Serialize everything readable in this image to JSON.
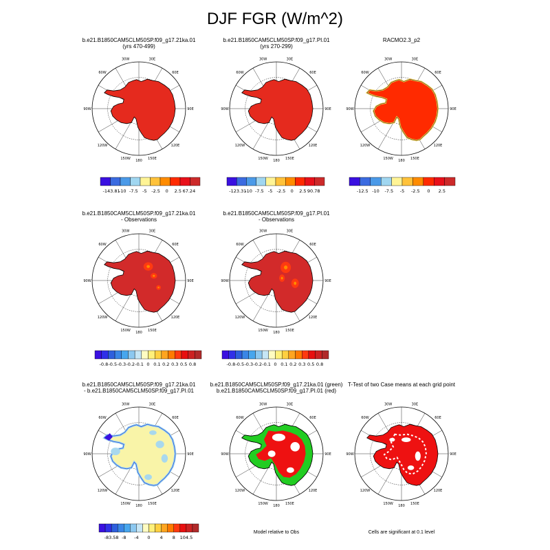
{
  "title": "DJF FGR (W/m^2)",
  "grid_labels": {
    "lon_labels": [
      "30W",
      "30E",
      "60W",
      "60E",
      "90W",
      "90E",
      "120W",
      "120E",
      "150W",
      "150E",
      "180"
    ]
  },
  "colors": {
    "palette_11": [
      "#3a10e0",
      "#3b6be0",
      "#4b9ae8",
      "#a0d6f0",
      "#fff496",
      "#ffc23a",
      "#ff8c00",
      "#ff2a00",
      "#e8101a",
      "#cc2a2a"
    ],
    "palette_16": [
      "#3a10e0",
      "#3030e8",
      "#2e5fdd",
      "#3a86e6",
      "#47a6ee",
      "#8cc8f0",
      "#c6e6f6",
      "#fffcc2",
      "#fff07a",
      "#ffd040",
      "#ffa520",
      "#ff7a00",
      "#ff3a10",
      "#e81010",
      "#cc2222",
      "#b02a2a"
    ],
    "model_fill": "#e52a1e",
    "racmo_fill": "#ff2a00",
    "diff_fill": "#d22a2a",
    "bias_fill": "#f9f4a8",
    "bias_light_blue": "#a8d8ee",
    "green": "#22cc22",
    "red": "#ee1111"
  },
  "chart_data": [
    {
      "id": "p1",
      "type": "heatmap",
      "title_lines": [
        "b.e21.B1850CAM5CLM50SP.f09_g17.21ka.01",
        "(yrs 470-499)"
      ],
      "colorbar_labels": [
        "-143.81",
        "-10",
        "-7.5",
        "-5",
        "-2.5",
        "0",
        "2.5",
        "67.24"
      ]
    },
    {
      "id": "p2",
      "type": "heatmap",
      "title_lines": [
        "b.e21.B1850CAM5CLM50SP.f09_g17.PI.01",
        "(yrs 270-299)"
      ],
      "colorbar_labels": [
        "-123.31",
        "-10",
        "-7.5",
        "-5",
        "-2.5",
        "0",
        "2.5",
        "90.78"
      ]
    },
    {
      "id": "p3",
      "type": "heatmap",
      "title_lines": [
        "RACMO2.3_p2"
      ],
      "colorbar_labels": [
        "-12.5",
        "-10",
        "-7.5",
        "-5",
        "-2.5",
        "0",
        "2.5"
      ]
    },
    {
      "id": "p4",
      "type": "heatmap",
      "title_lines": [
        "b.e21.B1850CAM5CLM50SP.f09_g17.21ka.01",
        "- Observations"
      ],
      "colorbar_labels": [
        "-0.8",
        "-0.5",
        "-0.3",
        "-0.2",
        "-0.1",
        "0",
        "0.1",
        "0.2",
        "0.3",
        "0.5",
        "0.8"
      ]
    },
    {
      "id": "p5",
      "type": "heatmap",
      "title_lines": [
        "b.e21.B1850CAM5CLM50SP.f09_g17.PI.01",
        "- Observations"
      ],
      "colorbar_labels": [
        "-0.8",
        "-0.5",
        "-0.3",
        "-0.2",
        "-0.1",
        "0",
        "0.1",
        "0.2",
        "0.3",
        "0.5",
        "0.8"
      ]
    },
    {
      "id": "p6",
      "type": "heatmap",
      "title_lines": [
        "b.e21.B1850CAM5CLM50SP.f09_g17.21ka.01",
        "- b.e21.B1850CAM5CLM50SP.f09_g17.PI.01"
      ],
      "colorbar_labels": [
        "-83.58",
        "-8",
        "-4",
        "0",
        "4",
        "8",
        "104.5"
      ]
    },
    {
      "id": "p7",
      "type": "heatmap",
      "title_lines": [
        "b.e21.B1850CAM5CLM50SP.f09_g17.21ka.01 (green)",
        "b.e21.B1850CAM5CLM50SP.f09_g17.PI.01 (red)"
      ],
      "note": "Model relative to Obs"
    },
    {
      "id": "p8",
      "type": "heatmap",
      "title_lines": [
        "T-Test of two Case means at each grid point"
      ],
      "note": "Cells are significant at 0.1 level"
    }
  ]
}
